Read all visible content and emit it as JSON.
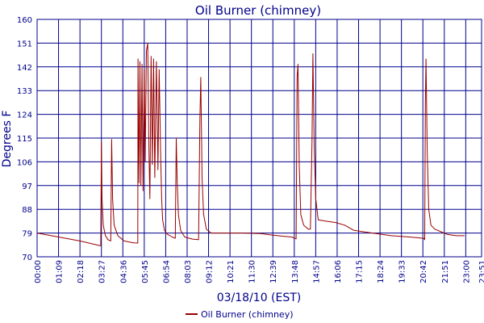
{
  "chart_data": {
    "type": "line",
    "title": "Oil Burner (chimney)",
    "xlabel": "03/18/10 (EST)",
    "ylabel": "Degrees F",
    "ylim": [
      70,
      160
    ],
    "xlim_minutes": [
      0,
      1431
    ],
    "yticks": [
      "70",
      "79",
      "88",
      "97",
      "106",
      "115",
      "124",
      "133",
      "142",
      "151",
      "160"
    ],
    "xticks": [
      "00:00",
      "01:09",
      "02:18",
      "03:27",
      "04:36",
      "05:45",
      "06:54",
      "08:03",
      "09:12",
      "10:21",
      "11:30",
      "12:39",
      "13:48",
      "14:57",
      "16:06",
      "17:15",
      "18:24",
      "19:33",
      "20:42",
      "21:51",
      "23:00",
      "23:51"
    ],
    "grid": true,
    "legend_position": "bottom",
    "colors": {
      "series": "#990000",
      "grid": "#00008b",
      "frame": "#00008b",
      "text": "#00008b"
    },
    "series": [
      {
        "name": "Oil Burner (chimney)",
        "points": [
          [
            "00:00",
            79
          ],
          [
            "01:09",
            77.5
          ],
          [
            "02:18",
            76
          ],
          [
            "03:20",
            74.3
          ],
          [
            "03:25",
            74.2
          ],
          [
            "03:27",
            113.5
          ],
          [
            "03:29",
            92
          ],
          [
            "03:33",
            82
          ],
          [
            "03:40",
            78
          ],
          [
            "03:48",
            76.5
          ],
          [
            "03:57",
            76
          ],
          [
            "04:00",
            114.5
          ],
          [
            "04:03",
            92
          ],
          [
            "04:08",
            82
          ],
          [
            "04:20",
            78
          ],
          [
            "04:40",
            76
          ],
          [
            "05:10",
            75.3
          ],
          [
            "05:24",
            75.2
          ],
          [
            "05:25",
            145
          ],
          [
            "05:28",
            98
          ],
          [
            "05:31",
            144
          ],
          [
            "05:34",
            97
          ],
          [
            "05:38",
            143
          ],
          [
            "05:41",
            95
          ],
          [
            "05:45",
            141
          ],
          [
            "05:48",
            106
          ],
          [
            "05:52",
            148
          ],
          [
            "05:56",
            151
          ],
          [
            "06:00",
            111
          ],
          [
            "06:03",
            92
          ],
          [
            "06:07",
            146
          ],
          [
            "06:11",
            105
          ],
          [
            "06:15",
            145
          ],
          [
            "06:19",
            100
          ],
          [
            "06:24",
            144
          ],
          [
            "06:29",
            103
          ],
          [
            "06:33",
            141
          ],
          [
            "06:38",
            108
          ],
          [
            "06:41",
            92
          ],
          [
            "06:44",
            84
          ],
          [
            "06:50",
            80
          ],
          [
            "07:00",
            78.5
          ],
          [
            "07:15",
            77.5
          ],
          [
            "07:25",
            77
          ],
          [
            "07:28",
            115
          ],
          [
            "07:31",
            98
          ],
          [
            "07:35",
            86
          ],
          [
            "07:42",
            80
          ],
          [
            "07:55",
            77.5
          ],
          [
            "08:20",
            76.7
          ],
          [
            "08:40",
            76.5
          ],
          [
            "08:44",
            122
          ],
          [
            "08:47",
            138
          ],
          [
            "08:51",
            100
          ],
          [
            "08:56",
            86
          ],
          [
            "09:05",
            80.5
          ],
          [
            "09:20",
            79
          ],
          [
            "10:00",
            79
          ],
          [
            "11:00",
            79
          ],
          [
            "12:00",
            78.8
          ],
          [
            "12:40",
            78.2
          ],
          [
            "13:10",
            77.8
          ],
          [
            "13:40",
            77.5
          ],
          [
            "13:54",
            76.8
          ],
          [
            "13:57",
            138
          ],
          [
            "14:00",
            143
          ],
          [
            "14:04",
            104
          ],
          [
            "14:09",
            86
          ],
          [
            "14:18",
            82
          ],
          [
            "14:33",
            80.5
          ],
          [
            "14:40",
            80.5
          ],
          [
            "14:45",
            114
          ],
          [
            "14:48",
            147
          ],
          [
            "14:52",
            112
          ],
          [
            "14:57",
            92
          ],
          [
            "15:05",
            84
          ],
          [
            "15:30",
            83.5
          ],
          [
            "16:00",
            83
          ],
          [
            "16:30",
            82
          ],
          [
            "17:00",
            80
          ],
          [
            "18:00",
            79
          ],
          [
            "19:00",
            78
          ],
          [
            "20:00",
            77.5
          ],
          [
            "20:45",
            77
          ],
          [
            "20:48",
            76.5
          ],
          [
            "20:50",
            128
          ],
          [
            "20:52",
            145
          ],
          [
            "20:56",
            110
          ],
          [
            "21:01",
            88
          ],
          [
            "21:08",
            82
          ],
          [
            "21:20",
            80.5
          ],
          [
            "21:40",
            79.5
          ],
          [
            "22:00",
            78.5
          ],
          [
            "22:30",
            78
          ],
          [
            "22:56",
            78
          ]
        ]
      }
    ]
  }
}
